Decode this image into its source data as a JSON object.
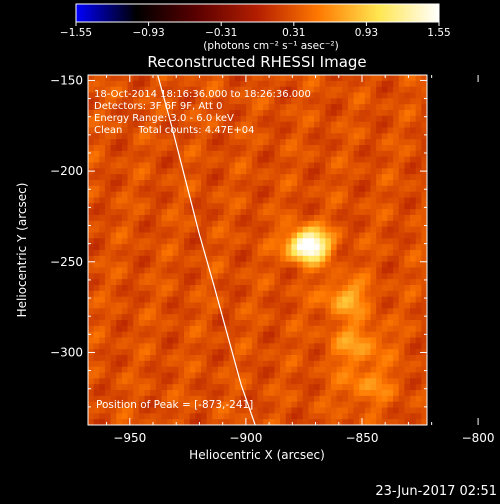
{
  "colorbar": {
    "ticks": [
      "-1.55",
      "-0.93",
      "-0.31",
      "0.31",
      "0.93",
      "1.55"
    ],
    "unit_label": "(photons cm⁻² s⁻¹ asec⁻²)",
    "colormap": [
      "#0000ff",
      "#000000",
      "#5a0000",
      "#b41e00",
      "#ff7800",
      "#ffe650",
      "#ffffff"
    ]
  },
  "title": "Reconstructed RHESSI Image",
  "info": {
    "line1": "18-Oct-2014 18:16:36.000 to 18:26:36.000",
    "line2": "Detectors: 3F 6F 9F, Att 0",
    "line3": "Energy Range: 3.0 - 6.0 keV",
    "line4": "Clean     Total counts: 4.47E+04"
  },
  "peak_label": "Position of Peak = [-873,-241]",
  "footer_date": "23-Jun-2017 02:51",
  "chart_data": {
    "type": "heatmap",
    "title": "Reconstructed RHESSI Image",
    "xlabel": "Heliocentric X (arcsec)",
    "ylabel": "Heliocentric Y (arcsec)",
    "xlim": [
      -968,
      -822
    ],
    "ylim": [
      -340,
      -147
    ],
    "x_ticks": [
      -950,
      -900,
      -850,
      -800
    ],
    "y_ticks": [
      -150,
      -200,
      -250,
      -300
    ],
    "x_tick_labels": [
      "−950",
      "−900",
      "−850",
      "−800"
    ],
    "y_tick_labels": [
      "−150",
      "−200",
      "−250",
      "−300"
    ],
    "clim": [
      -1.55,
      1.55
    ],
    "peak": {
      "x": -873,
      "y": -241
    },
    "sources": [
      {
        "x": -873,
        "y": -241,
        "sigma": 6,
        "amp": 1.55
      },
      {
        "x": -857,
        "y": -270,
        "sigma": 7,
        "amp": 0.5
      },
      {
        "x": -852,
        "y": -295,
        "sigma": 8,
        "amp": 0.4
      },
      {
        "x": -848,
        "y": -318,
        "sigma": 8,
        "amp": 0.32
      }
    ],
    "background_level": 0.28,
    "limb_curve": {
      "x": [
        -938,
        -932,
        -926,
        -920,
        -914,
        -908,
        -902,
        -896
      ],
      "y": [
        -147,
        -175,
        -205,
        -235,
        -262,
        -290,
        -318,
        -340
      ]
    }
  }
}
